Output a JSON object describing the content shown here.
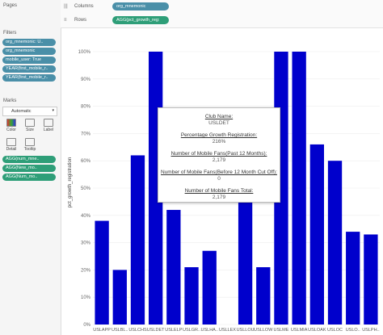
{
  "panels": {
    "pages_title": "Pages",
    "filters_title": "Filters",
    "marks_title": "Marks",
    "filters": [
      "org_mnemonic: U..",
      "org_mnemonic",
      "mobile_user: True",
      "YEAR(first_mobile_r..",
      "YEAR(first_mobile_r.."
    ],
    "mark_type": "Automatic",
    "mark_buttons": [
      "Color",
      "Size",
      "Label",
      "Detail",
      "Tooltip"
    ],
    "mark_pills": [
      "AGG(num_mne..",
      "AGG(New_mo..",
      "AGG(Num_mo.."
    ]
  },
  "shelves": {
    "columns_label": "Columns",
    "columns_pill": "org_mnemonic",
    "rows_label": "Rows",
    "rows_pill": "AGG(pct_growth_reg:"
  },
  "colors": {
    "bar": "#0000cc",
    "blue_pill": "#4a8fa8",
    "green_pill": "#2e9e78"
  },
  "chart_data": {
    "type": "bar",
    "ylabel": "pct_growth_registration",
    "ylim": [
      0,
      100
    ],
    "yticks": [
      "0%",
      "10%",
      "20%",
      "30%",
      "40%",
      "50%",
      "60%",
      "70%",
      "80%",
      "90%",
      "100%"
    ],
    "categories": [
      "USLAPP",
      "USLBL..",
      "USLCHS",
      "USLDET",
      "USLELP",
      "USLGR..",
      "USLHA..",
      "USLLEX",
      "USLLOU",
      "USLLOW",
      "USLME",
      "USLMIA",
      "USLOAK",
      "USLOC",
      "USLO..",
      "USLPH.."
    ],
    "values": [
      38,
      20,
      62,
      100,
      42,
      21,
      27,
      0,
      50,
      21,
      100,
      100,
      66,
      60,
      34,
      33
    ]
  },
  "tooltip": {
    "club_label": "Club Name:",
    "club_value": "USLDET",
    "pct_label": "Percentage Growth Registration:",
    "pct_value": "216%",
    "fans12_label": "Number of Mobile Fans(Past 12 Months):",
    "fans12_value": "2,179",
    "fanscut_label": "Number of Mobile Fans(Before 12 Month Cut Off):",
    "fanscut_value": "0",
    "total_label": "Number of Mobile Fans Total:",
    "total_value": "2,179"
  }
}
